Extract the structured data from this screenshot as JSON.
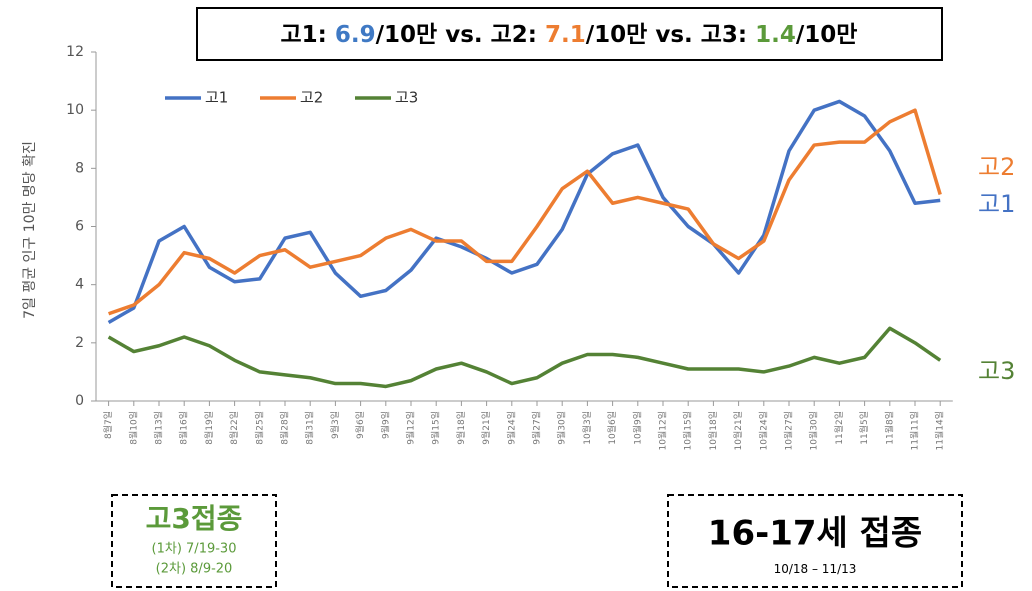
{
  "chart_data": {
    "type": "line",
    "title_parts": [
      {
        "text": "고1: "
      },
      {
        "text": "6.9",
        "color": "#3f79c4"
      },
      {
        "text": "/10만 vs. 고2: "
      },
      {
        "text": "7.1",
        "color": "#ed7d31"
      },
      {
        "text": "/10만 vs. 고3: "
      },
      {
        "text": "1.4",
        "color": "#5b9a3a"
      },
      {
        "text": "/10만"
      }
    ],
    "y_label": "7일 평균 인구 10만 명당 확진",
    "categories": [
      "8월7일",
      "8월10일",
      "8월13일",
      "8월16일",
      "8월19일",
      "8월22일",
      "8월25일",
      "8월28일",
      "8월31일",
      "9월3일",
      "9월6일",
      "9월9일",
      "9월12일",
      "9월15일",
      "9월18일",
      "9월21일",
      "9월24일",
      "9월27일",
      "9월30일",
      "10월3일",
      "10월6일",
      "10월9일",
      "10월12일",
      "10월15일",
      "10월18일",
      "10월21일",
      "10월24일",
      "10월27일",
      "10월30일",
      "11월2일",
      "11월5일",
      "11월8일",
      "11월11일",
      "11월14일"
    ],
    "series": [
      {
        "name": "고1",
        "color": "#4472c4",
        "values": [
          2.7,
          3.2,
          5.5,
          6.0,
          4.6,
          4.1,
          4.2,
          5.6,
          5.8,
          4.4,
          3.6,
          3.8,
          4.5,
          5.6,
          5.3,
          4.9,
          4.4,
          4.7,
          5.9,
          7.8,
          8.5,
          8.8,
          7.0,
          6.0,
          5.4,
          4.4,
          5.7,
          8.6,
          10.0,
          10.3,
          9.8,
          8.6,
          6.8,
          6.9
        ]
      },
      {
        "name": "고2",
        "color": "#ed7d31",
        "values": [
          3.0,
          3.3,
          4.0,
          5.1,
          4.9,
          4.4,
          5.0,
          5.2,
          4.6,
          4.8,
          5.0,
          5.6,
          5.9,
          5.5,
          5.5,
          4.8,
          4.8,
          6.0,
          7.3,
          7.9,
          6.8,
          7.0,
          6.8,
          6.6,
          5.4,
          4.9,
          5.5,
          7.6,
          8.8,
          8.9,
          8.9,
          9.6,
          10.0,
          7.1
        ]
      },
      {
        "name": "고3",
        "color": "#548235",
        "values": [
          2.2,
          1.7,
          1.9,
          2.2,
          1.9,
          1.4,
          1.0,
          0.9,
          0.8,
          0.6,
          0.6,
          0.5,
          0.7,
          1.1,
          1.3,
          1.0,
          0.6,
          0.8,
          1.3,
          1.6,
          1.6,
          1.5,
          1.3,
          1.1,
          1.1,
          1.1,
          1.0,
          1.2,
          1.5,
          1.3,
          1.5,
          2.5,
          2.0,
          1.4
        ]
      }
    ],
    "ylim": [
      0,
      12
    ],
    "yticks": [
      0,
      2,
      4,
      6,
      8,
      10,
      12
    ],
    "legend": "top-left",
    "boxes": [
      {
        "title": "고3접종",
        "lines": [
          "(1차) 7/19-30",
          "(2차) 8/9-20"
        ],
        "color": "#5b9a3a"
      },
      {
        "title": "16-17세 접종",
        "lines": [
          "10/18 – 11/13"
        ],
        "color": "#000000"
      }
    ]
  }
}
